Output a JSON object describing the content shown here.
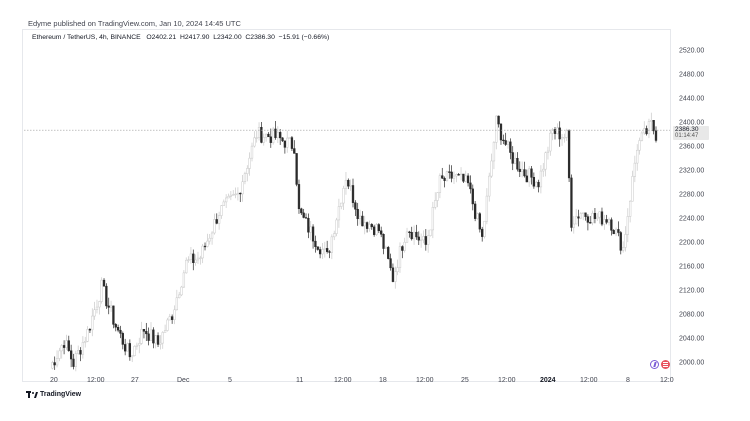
{
  "publisher": "Edyme published on TradingView.com, Jan 10, 2024 14:45 UTC",
  "symbol": {
    "name": "Ethereum / TetherUS, 4h, BINANCE",
    "open": "O2402.21",
    "high": "H2417.90",
    "low": "L2342.00",
    "close": "C2386.30",
    "change": "−15.91 (−0.66%)"
  },
  "price_tag": {
    "price": "2386.30",
    "countdown": "01:14:47"
  },
  "brand": "TradingView",
  "icons": [
    "lightning-icon",
    "us-flag-icon"
  ],
  "colors": {
    "up": "#c8c8c8",
    "down": "#2a2a2a",
    "axis": "#434651",
    "price_line": "#9e9e9e"
  },
  "chart_data": {
    "type": "candlestick",
    "ylim": [
      1980,
      2540
    ],
    "y_ticks": [
      "2520.00",
      "2480.00",
      "2440.00",
      "2400.00",
      "2360.00",
      "2320.00",
      "2280.00",
      "2240.00",
      "2200.00",
      "2160.00",
      "2120.00",
      "2080.00",
      "2040.00",
      "2000.00"
    ],
    "x_ticks": [
      {
        "label": "20",
        "bold": false
      },
      {
        "label": "12:00",
        "bold": false
      },
      {
        "label": "27",
        "bold": false
      },
      {
        "label": "Dec",
        "bold": false
      },
      {
        "label": "5",
        "bold": false
      },
      {
        "label": "11",
        "bold": false
      },
      {
        "label": "12:00",
        "bold": false
      },
      {
        "label": "18",
        "bold": false
      },
      {
        "label": "12:00",
        "bold": false
      },
      {
        "label": "25",
        "bold": false
      },
      {
        "label": "12:00",
        "bold": false
      },
      {
        "label": "2024",
        "bold": true
      },
      {
        "label": "12:00",
        "bold": false
      },
      {
        "label": "8",
        "bold": false
      },
      {
        "label": "12:0",
        "bold": false
      }
    ],
    "last_price": 2386.3,
    "waypoints": [
      [
        0,
        1990
      ],
      [
        6,
        2035
      ],
      [
        10,
        1998
      ],
      [
        16,
        2050
      ],
      [
        22,
        2125
      ],
      [
        28,
        2060
      ],
      [
        34,
        2010
      ],
      [
        40,
        2055
      ],
      [
        46,
        2030
      ],
      [
        52,
        2080
      ],
      [
        58,
        2165
      ],
      [
        64,
        2175
      ],
      [
        72,
        2250
      ],
      [
        80,
        2280
      ],
      [
        88,
        2380
      ],
      [
        96,
        2375
      ],
      [
        104,
        2360
      ],
      [
        106,
        2250
      ],
      [
        112,
        2210
      ],
      [
        118,
        2175
      ],
      [
        126,
        2310
      ],
      [
        132,
        2240
      ],
      [
        140,
        2220
      ],
      [
        146,
        2140
      ],
      [
        152,
        2225
      ],
      [
        160,
        2195
      ],
      [
        166,
        2300
      ],
      [
        172,
        2310
      ],
      [
        178,
        2295
      ],
      [
        184,
        2205
      ],
      [
        190,
        2400
      ],
      [
        196,
        2345
      ],
      [
        202,
        2315
      ],
      [
        208,
        2300
      ],
      [
        214,
        2385
      ],
      [
        220,
        2375
      ],
      [
        222,
        2235
      ],
      [
        226,
        2250
      ],
      [
        232,
        2240
      ],
      [
        238,
        2240
      ],
      [
        244,
        2190
      ],
      [
        250,
        2360
      ],
      [
        256,
        2395
      ],
      [
        258,
        2380
      ]
    ]
  }
}
